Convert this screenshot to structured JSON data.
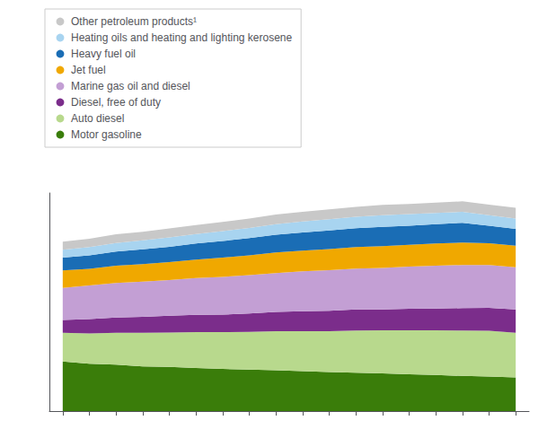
{
  "chart_data": {
    "type": "area",
    "stacked": true,
    "legend": "upper left",
    "grid": false,
    "tick_labels": false,
    "categories": [
      null,
      null,
      null,
      null,
      null,
      null,
      null,
      null,
      null,
      null,
      null,
      null,
      null,
      null,
      null,
      null,
      null,
      null
    ],
    "ylim": [
      0,
      682.24
    ],
    "series": [
      {
        "name": "Motor gasoline",
        "color": "#3a7d0a",
        "values": [
          155,
          148,
          145,
          140,
          138,
          135,
          132,
          130,
          128,
          125,
          122,
          120,
          118,
          115,
          113,
          110,
          108,
          105
        ]
      },
      {
        "name": "Auto diesel",
        "color": "#b8d98d",
        "values": [
          90,
          95,
          100,
          105,
          108,
          112,
          115,
          118,
          122,
          125,
          128,
          132,
          135,
          138,
          140,
          142,
          143,
          140
        ]
      },
      {
        "name": "Diesel, free of duty",
        "color": "#7b2d8b",
        "values": [
          40,
          45,
          48,
          50,
          52,
          54,
          55,
          57,
          60,
          62,
          64,
          66,
          65,
          67,
          68,
          70,
          72,
          73
        ]
      },
      {
        "name": "Marine gas oil and diesel",
        "color": "#c39fd4",
        "values": [
          100,
          105,
          108,
          110,
          112,
          115,
          118,
          120,
          122,
          125,
          127,
          128,
          130,
          132,
          134,
          135,
          134,
          132
        ]
      },
      {
        "name": "Jet fuel",
        "color": "#f0a800",
        "values": [
          55,
          52,
          54,
          55,
          56,
          58,
          60,
          62,
          64,
          65,
          66,
          67,
          68,
          68,
          69,
          70,
          68,
          67
        ]
      },
      {
        "name": "Heavy fuel oil",
        "color": "#1a6db5",
        "values": [
          40,
          42,
          44,
          46,
          48,
          50,
          52,
          54,
          56,
          57,
          58,
          59,
          60,
          60,
          61,
          62,
          55,
          53
        ]
      },
      {
        "name": "Heating oils and heating and lighting kerosene",
        "color": "#a8d4f0",
        "values": [
          25,
          26,
          27,
          28,
          29,
          30,
          31,
          32,
          33,
          34,
          35,
          36,
          37,
          36,
          35,
          34,
          33,
          32
        ]
      },
      {
        "name": "Other petroleum products¹",
        "color": "#c8c8c8",
        "values": [
          25,
          26,
          27,
          27,
          28,
          28,
          29,
          29,
          30,
          30,
          31,
          31,
          32,
          32,
          32,
          33,
          33,
          34
        ]
      }
    ]
  }
}
